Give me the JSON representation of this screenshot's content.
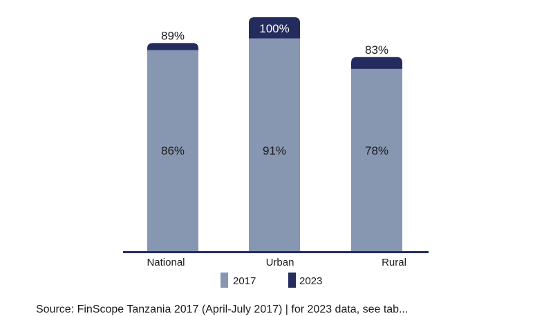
{
  "chart_data": {
    "type": "bar",
    "categories": [
      "National",
      "Urban",
      "Rural"
    ],
    "series": [
      {
        "name": "2017",
        "values": [
          86,
          91,
          78
        ],
        "color": "#8797b2"
      },
      {
        "name": "2023",
        "values": [
          89,
          100,
          83
        ],
        "color": "#242c5e"
      }
    ],
    "value_suffix": "%",
    "ylim": [
      0,
      100
    ],
    "legend_position": "bottom",
    "grid": false,
    "baseline_color": "#242c5e"
  },
  "footer": {
    "text": "Source: FinScope Tanzania 2017 (April-July 2017) | for 2023 data, see tab..."
  }
}
